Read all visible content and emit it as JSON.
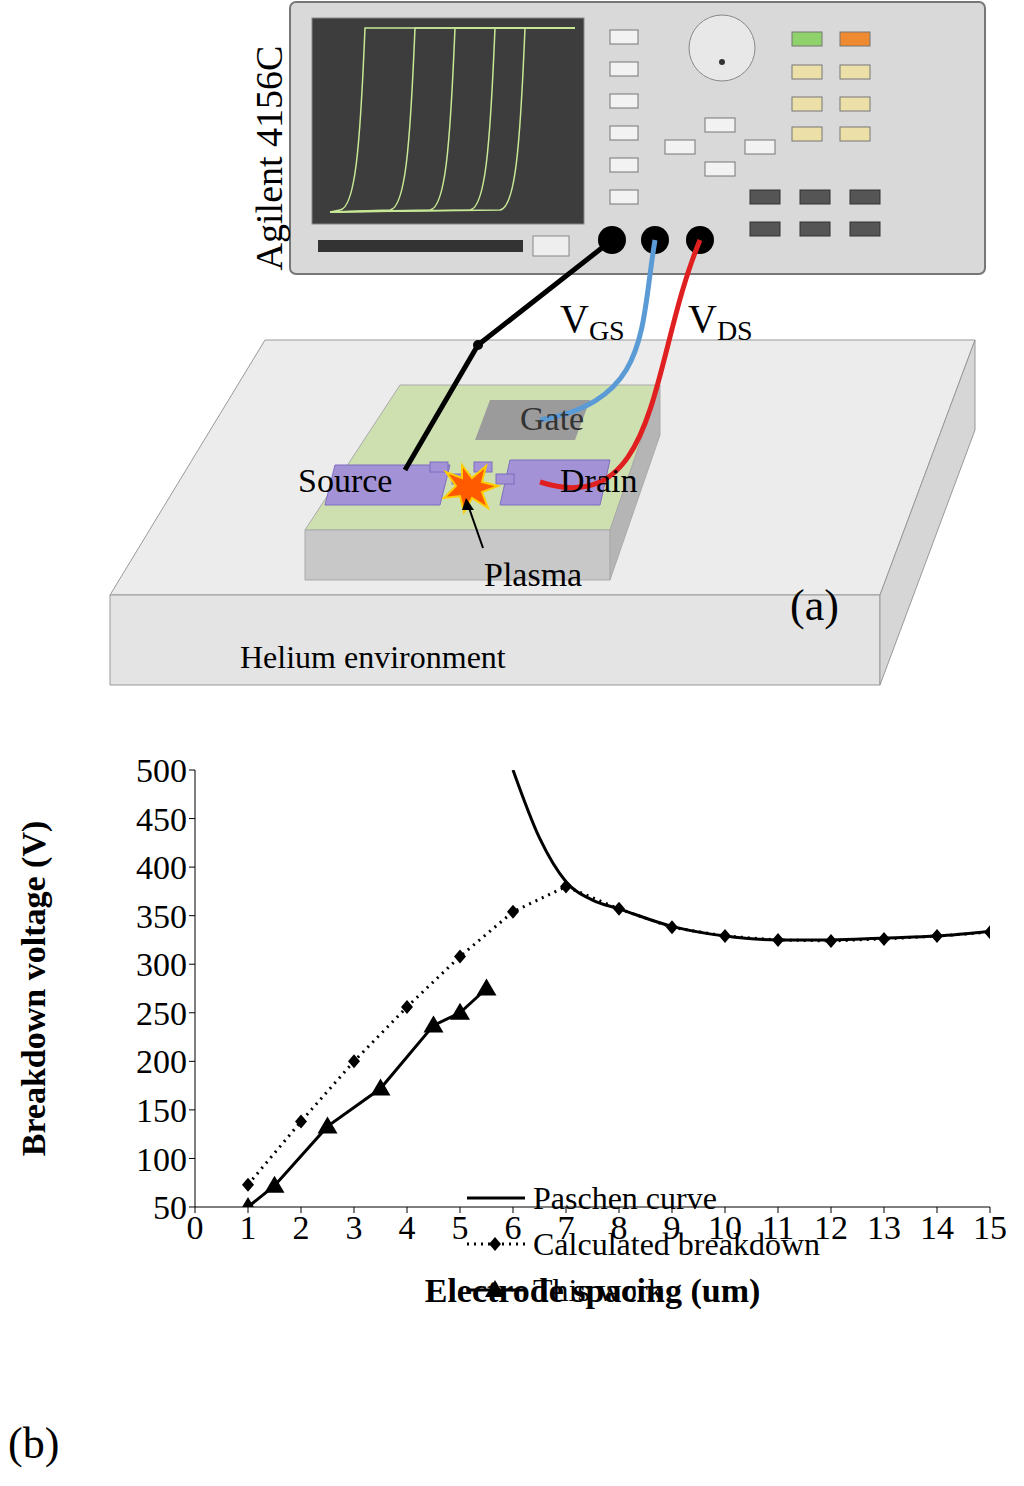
{
  "diagram": {
    "instrument": "Agilent 4156C",
    "vgs": {
      "main": "V",
      "sub": "GS"
    },
    "vds": {
      "main": "V",
      "sub": "DS"
    },
    "gate": "Gate",
    "source": "Source",
    "drain": "Drain",
    "plasma": "Plasma",
    "panel": "(a)",
    "environment": "Helium environment"
  },
  "chart_data": {
    "type": "line",
    "panel": "(b)",
    "x_label": "Electrode spacing (um)",
    "y_label": "Breakdown voltage (V)",
    "xlim": [
      0,
      15
    ],
    "xticks": [
      0,
      1,
      2,
      3,
      4,
      5,
      6,
      7,
      8,
      9,
      10,
      11,
      12,
      13,
      14,
      15
    ],
    "ylim": [
      50,
      500
    ],
    "yticks": [
      50,
      100,
      150,
      200,
      250,
      300,
      350,
      400,
      450,
      500
    ],
    "grid": false,
    "legend": "lower right",
    "series": [
      {
        "name": "Paschen curve",
        "color": "#000000",
        "marker": "none",
        "line_style": "solid",
        "x": [
          6,
          6.5,
          7,
          7.5,
          8,
          9,
          10,
          11,
          12,
          13,
          14,
          15
        ],
        "values": [
          500,
          430,
          385,
          366,
          357,
          339,
          329,
          325,
          325,
          327,
          329,
          334
        ]
      },
      {
        "name": "Calculated breakdown",
        "color": "#000000",
        "marker": "diamond",
        "line_style": "dotted",
        "x": [
          1,
          2,
          3,
          4,
          5,
          6,
          7,
          8,
          9,
          10,
          11,
          12,
          13,
          14,
          15
        ],
        "values": [
          73,
          138,
          200,
          256,
          308,
          354,
          380,
          357,
          338,
          329,
          325,
          324,
          326,
          329,
          333
        ]
      },
      {
        "name": "This work",
        "color": "#000000",
        "marker": "triangle",
        "line_style": "solid",
        "x": [
          1,
          1.5,
          2.5,
          3.5,
          4.5,
          5,
          5.5
        ],
        "values": [
          50,
          72,
          133,
          172,
          237,
          250,
          275
        ]
      }
    ]
  }
}
